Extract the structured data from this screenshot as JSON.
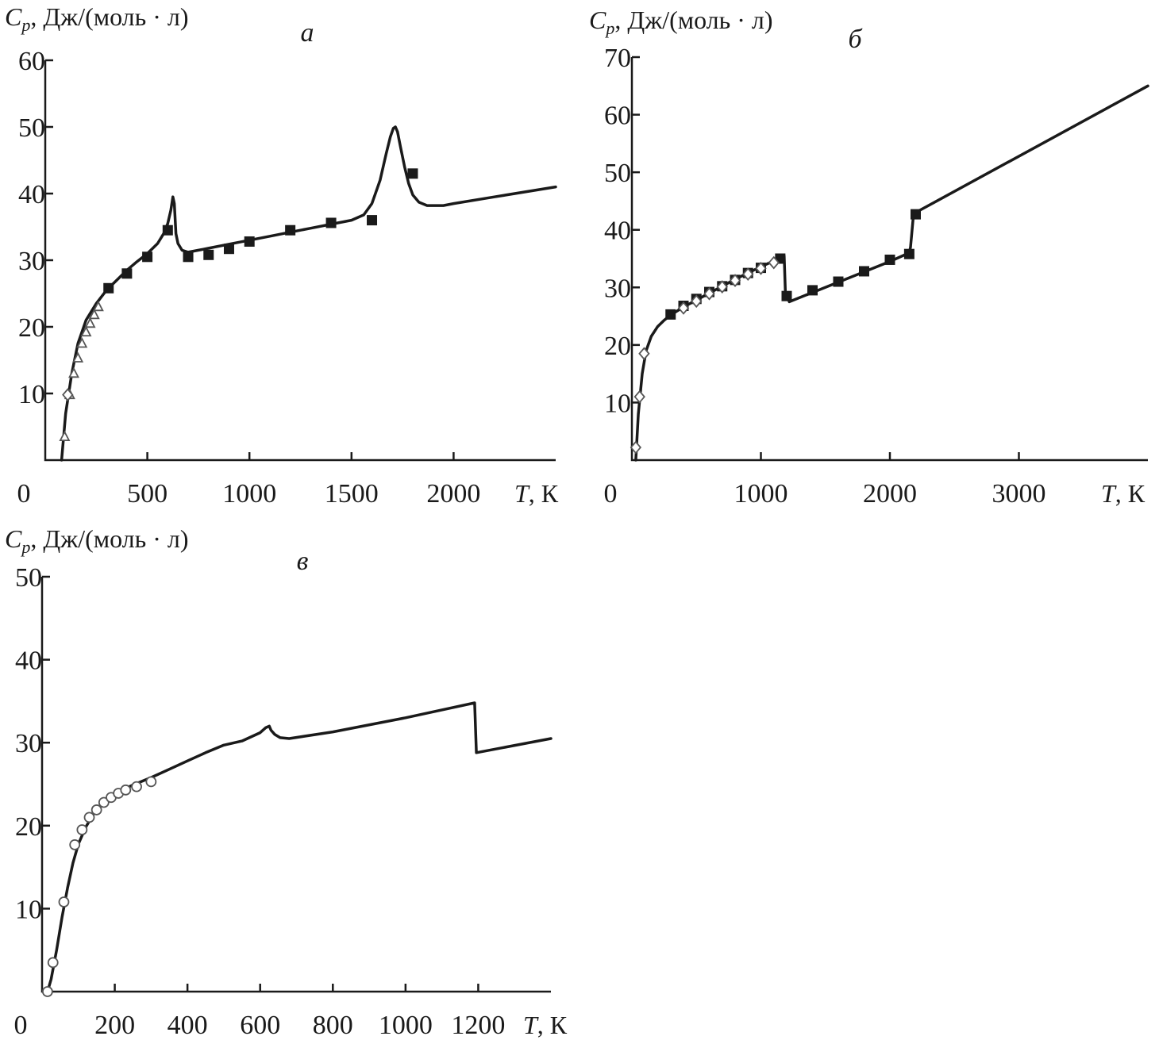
{
  "chart_data": [
    {
      "id": "a",
      "type": "line",
      "panel_label": "а",
      "ylabel_symbol": "C",
      "ylabel_sub": "p",
      "ylabel_rest": ", Дж/(моль · л)",
      "xlabel_symbol": "T",
      "xlabel_rest": ", К",
      "xlim": [
        0,
        2500
      ],
      "ylim": [
        0,
        60
      ],
      "xticks": [
        0,
        500,
        1000,
        1500,
        2000
      ],
      "yticks": [
        10,
        20,
        30,
        40,
        50,
        60
      ],
      "x_origin_label": "0",
      "grid": false,
      "curve": {
        "x": [
          80,
          100,
          130,
          160,
          200,
          250,
          300,
          350,
          400,
          450,
          500,
          550,
          580,
          600,
          615,
          625,
          632,
          640,
          650,
          670,
          700,
          800,
          900,
          1000,
          1100,
          1200,
          1300,
          1400,
          1500,
          1560,
          1600,
          1640,
          1670,
          1690,
          1705,
          1715,
          1725,
          1740,
          1760,
          1780,
          1800,
          1830,
          1870,
          1950,
          2000,
          2200,
          2500
        ],
        "y": [
          0,
          7,
          13,
          17.5,
          21,
          23.5,
          25.5,
          27,
          28.5,
          29.8,
          31,
          32.5,
          34,
          35.5,
          37.5,
          39.5,
          38.5,
          34,
          32.5,
          31.5,
          31.2,
          31.8,
          32.4,
          33,
          33.6,
          34.2,
          34.8,
          35.4,
          36,
          36.8,
          38.5,
          42,
          46,
          48.5,
          49.8,
          50,
          49.3,
          47,
          44,
          41.5,
          39.8,
          38.7,
          38.2,
          38.2,
          38.5,
          39.5,
          41
        ]
      },
      "series": [
        {
          "marker": "square-filled",
          "x": [
            310,
            400,
            500,
            600,
            700,
            800,
            900,
            1000,
            1200,
            1400,
            1600,
            1800
          ],
          "y": [
            25.8,
            28,
            30.5,
            34.5,
            30.5,
            30.8,
            31.7,
            32.8,
            34.5,
            35.6,
            36,
            43
          ]
        },
        {
          "marker": "triangle-open",
          "x": [
            95,
            120,
            140,
            160,
            180,
            200,
            220,
            240,
            260
          ],
          "y": [
            3.5,
            9.8,
            13,
            15.3,
            17.5,
            19.2,
            20.5,
            21.8,
            23
          ]
        },
        {
          "marker": "diamond-open",
          "x": [
            110
          ],
          "y": [
            9.8
          ]
        }
      ]
    },
    {
      "id": "b",
      "type": "line",
      "panel_label": "б",
      "ylabel_symbol": "C",
      "ylabel_sub": "p",
      "ylabel_rest": ", Дж/(моль · л)",
      "xlabel_symbol": "T",
      "xlabel_rest": ", К",
      "xlim": [
        0,
        4000
      ],
      "ylim": [
        0,
        70
      ],
      "xticks": [
        0,
        1000,
        2000,
        3000
      ],
      "yticks": [
        10,
        20,
        30,
        40,
        50,
        60,
        70
      ],
      "x_origin_label": "0",
      "grid": false,
      "curve": {
        "x": [
          30,
          50,
          80,
          110,
          150,
          200,
          250,
          300,
          400,
          500,
          600,
          700,
          800,
          900,
          1000,
          1100,
          1180,
          1190,
          1220,
          2000,
          2150,
          2160,
          2180,
          2200,
          4000
        ],
        "y": [
          0,
          8,
          15,
          19,
          21.5,
          23.2,
          24.3,
          25.2,
          26.6,
          27.8,
          29,
          30.2,
          31.4,
          32.5,
          33.6,
          34.6,
          35.5,
          29,
          27.5,
          34.5,
          36,
          37,
          42,
          43,
          65
        ]
      },
      "series": [
        {
          "marker": "square-filled",
          "x": [
            300,
            400,
            500,
            600,
            700,
            800,
            900,
            1000,
            1150,
            1200,
            1400,
            1600,
            1800,
            2000,
            2150,
            2200
          ],
          "y": [
            25.3,
            26.8,
            28,
            29.2,
            30.2,
            31.3,
            32.5,
            33.4,
            35,
            28.5,
            29.5,
            31,
            32.8,
            34.8,
            35.8,
            42.7
          ]
        },
        {
          "marker": "diamond-open",
          "x": [
            30,
            60,
            95,
            400,
            500,
            600,
            700,
            800,
            900,
            1000,
            1100
          ],
          "y": [
            2.2,
            11,
            18.5,
            26.4,
            27.6,
            28.9,
            30.1,
            31.2,
            32.3,
            33.3,
            34.3
          ]
        }
      ]
    },
    {
      "id": "v",
      "type": "line",
      "panel_label": "в",
      "ylabel_symbol": "C",
      "ylabel_sub": "p",
      "ylabel_rest": ", Дж/(моль · л)",
      "xlabel_symbol": "T",
      "xlabel_rest": ", К",
      "xlim": [
        0,
        1400
      ],
      "ylim": [
        0,
        50
      ],
      "xticks": [
        0,
        200,
        400,
        600,
        800,
        1000,
        1200
      ],
      "yticks": [
        10,
        20,
        30,
        40,
        50
      ],
      "x_origin_label": "0",
      "grid": false,
      "curve": {
        "x": [
          15,
          25,
          40,
          55,
          70,
          85,
          100,
          120,
          140,
          160,
          180,
          200,
          225,
          250,
          300,
          350,
          400,
          450,
          500,
          550,
          600,
          615,
          625,
          630,
          640,
          655,
          680,
          800,
          1000,
          1190,
          1195,
          1400
        ],
        "y": [
          0,
          1.5,
          5,
          9,
          12.5,
          15.5,
          17.8,
          19.8,
          21.3,
          22.4,
          23.2,
          23.8,
          24.4,
          24.9,
          25.8,
          26.8,
          27.8,
          28.8,
          29.7,
          30.2,
          31.2,
          31.8,
          32,
          31.5,
          31,
          30.6,
          30.5,
          31.3,
          33,
          34.8,
          28.8,
          30.5
        ]
      },
      "series": [
        {
          "marker": "circle-open",
          "x": [
            15,
            30,
            60,
            90,
            110,
            130,
            150,
            170,
            190,
            210,
            230,
            260,
            300
          ],
          "y": [
            0,
            3.5,
            10.8,
            17.7,
            19.5,
            21,
            21.9,
            22.8,
            23.4,
            23.9,
            24.3,
            24.7,
            25.3
          ]
        }
      ]
    }
  ]
}
